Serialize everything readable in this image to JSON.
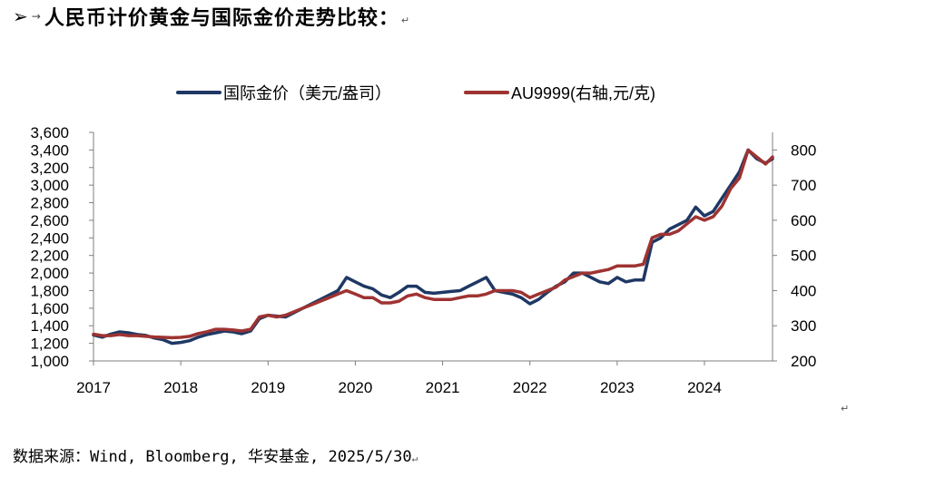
{
  "heading": {
    "arrow": "➢",
    "tab_mark": "→",
    "title": "人民币计价黄金与国际金价走势比较：",
    "para_mark": "↵"
  },
  "source": {
    "text": "数据来源：Wind, Bloomberg, 华安基金, 2025/5/30",
    "para_mark": "↵"
  },
  "stray_mark": "↵",
  "colors": {
    "international_gold": "#1f3864",
    "au9999": "#9e3332",
    "axis": "#7f7f7f"
  },
  "chart_data": {
    "type": "line",
    "title": "",
    "xlabel": "",
    "ylabel": "",
    "y2label": "",
    "xlim": [
      2017.0,
      2024.78
    ],
    "x_ticks": [
      "2017",
      "2018",
      "2019",
      "2020",
      "2021",
      "2022",
      "2023",
      "2024"
    ],
    "ylim": [
      1000,
      3600
    ],
    "y_ticks": [
      "1,000",
      "1,200",
      "1,400",
      "1,600",
      "1,800",
      "2,000",
      "2,200",
      "2,400",
      "2,600",
      "2,800",
      "3,000",
      "3,200",
      "3,400",
      "3,600"
    ],
    "y2lim": [
      200,
      850
    ],
    "y2_ticks": [
      "200",
      "300",
      "400",
      "500",
      "600",
      "700",
      "800"
    ],
    "legend_position": "top-center",
    "series": [
      {
        "name": "国际金价（美元/盎司）",
        "axis": "left",
        "x": [
          2017.0,
          2017.1,
          2017.2,
          2017.3,
          2017.4,
          2017.5,
          2017.6,
          2017.7,
          2017.8,
          2017.9,
          2018.0,
          2018.1,
          2018.2,
          2018.3,
          2018.4,
          2018.5,
          2018.6,
          2018.7,
          2018.8,
          2018.9,
          2019.0,
          2019.1,
          2019.2,
          2019.3,
          2019.4,
          2019.5,
          2019.6,
          2019.7,
          2019.8,
          2019.9,
          2020.0,
          2020.1,
          2020.2,
          2020.3,
          2020.4,
          2020.5,
          2020.6,
          2020.7,
          2020.8,
          2020.9,
          2021.0,
          2021.1,
          2021.2,
          2021.3,
          2021.4,
          2021.5,
          2021.6,
          2021.7,
          2021.8,
          2021.9,
          2022.0,
          2022.1,
          2022.2,
          2022.3,
          2022.4,
          2022.5,
          2022.6,
          2022.7,
          2022.8,
          2022.9,
          2023.0,
          2023.1,
          2023.2,
          2023.3,
          2023.4,
          2023.5,
          2023.6,
          2023.7,
          2023.8,
          2023.9,
          2024.0,
          2024.1,
          2024.2,
          2024.3,
          2024.4,
          2024.5,
          2024.6,
          2024.7,
          2024.78
        ],
        "values": [
          1295,
          1270,
          1305,
          1330,
          1320,
          1300,
          1290,
          1260,
          1240,
          1200,
          1210,
          1230,
          1270,
          1300,
          1320,
          1340,
          1330,
          1310,
          1340,
          1480,
          1520,
          1510,
          1500,
          1550,
          1600,
          1650,
          1700,
          1750,
          1800,
          1950,
          1900,
          1850,
          1820,
          1750,
          1720,
          1780,
          1850,
          1850,
          1780,
          1770,
          1780,
          1790,
          1800,
          1850,
          1900,
          1950,
          1800,
          1780,
          1760,
          1720,
          1650,
          1700,
          1780,
          1850,
          1900,
          2000,
          2000,
          1950,
          1900,
          1880,
          1950,
          1900,
          1920,
          1920,
          2350,
          2400,
          2500,
          2550,
          2600,
          2750,
          2650,
          2700,
          2850,
          3000,
          3150,
          3400,
          3300,
          3250,
          3300
        ]
      },
      {
        "name": "AU9999(右轴,元/克)",
        "axis": "right",
        "x": [
          2017.0,
          2017.1,
          2017.2,
          2017.3,
          2017.4,
          2017.5,
          2017.6,
          2017.7,
          2017.8,
          2017.9,
          2018.0,
          2018.1,
          2018.2,
          2018.3,
          2018.4,
          2018.5,
          2018.6,
          2018.7,
          2018.8,
          2018.9,
          2019.0,
          2019.1,
          2019.2,
          2019.3,
          2019.4,
          2019.5,
          2019.6,
          2019.7,
          2019.8,
          2019.9,
          2020.0,
          2020.1,
          2020.2,
          2020.3,
          2020.4,
          2020.5,
          2020.6,
          2020.7,
          2020.8,
          2020.9,
          2021.0,
          2021.1,
          2021.2,
          2021.3,
          2021.4,
          2021.5,
          2021.6,
          2021.7,
          2021.8,
          2021.9,
          2022.0,
          2022.1,
          2022.2,
          2022.3,
          2022.4,
          2022.5,
          2022.6,
          2022.7,
          2022.8,
          2022.9,
          2023.0,
          2023.1,
          2023.2,
          2023.3,
          2023.4,
          2023.5,
          2023.6,
          2023.7,
          2023.8,
          2023.9,
          2024.0,
          2024.1,
          2024.2,
          2024.3,
          2024.4,
          2024.5,
          2024.6,
          2024.7,
          2024.78
        ],
        "values": [
          276,
          272,
          272,
          275,
          272,
          272,
          270,
          268,
          267,
          266,
          267,
          270,
          278,
          283,
          290,
          290,
          288,
          285,
          290,
          325,
          330,
          325,
          330,
          340,
          350,
          360,
          370,
          380,
          390,
          400,
          390,
          380,
          380,
          365,
          365,
          370,
          385,
          390,
          380,
          375,
          375,
          375,
          380,
          385,
          385,
          390,
          400,
          400,
          400,
          395,
          380,
          390,
          400,
          410,
          430,
          440,
          450,
          450,
          455,
          460,
          470,
          470,
          470,
          475,
          550,
          560,
          560,
          570,
          590,
          610,
          600,
          610,
          640,
          690,
          720,
          800,
          780,
          760,
          780
        ]
      }
    ]
  }
}
